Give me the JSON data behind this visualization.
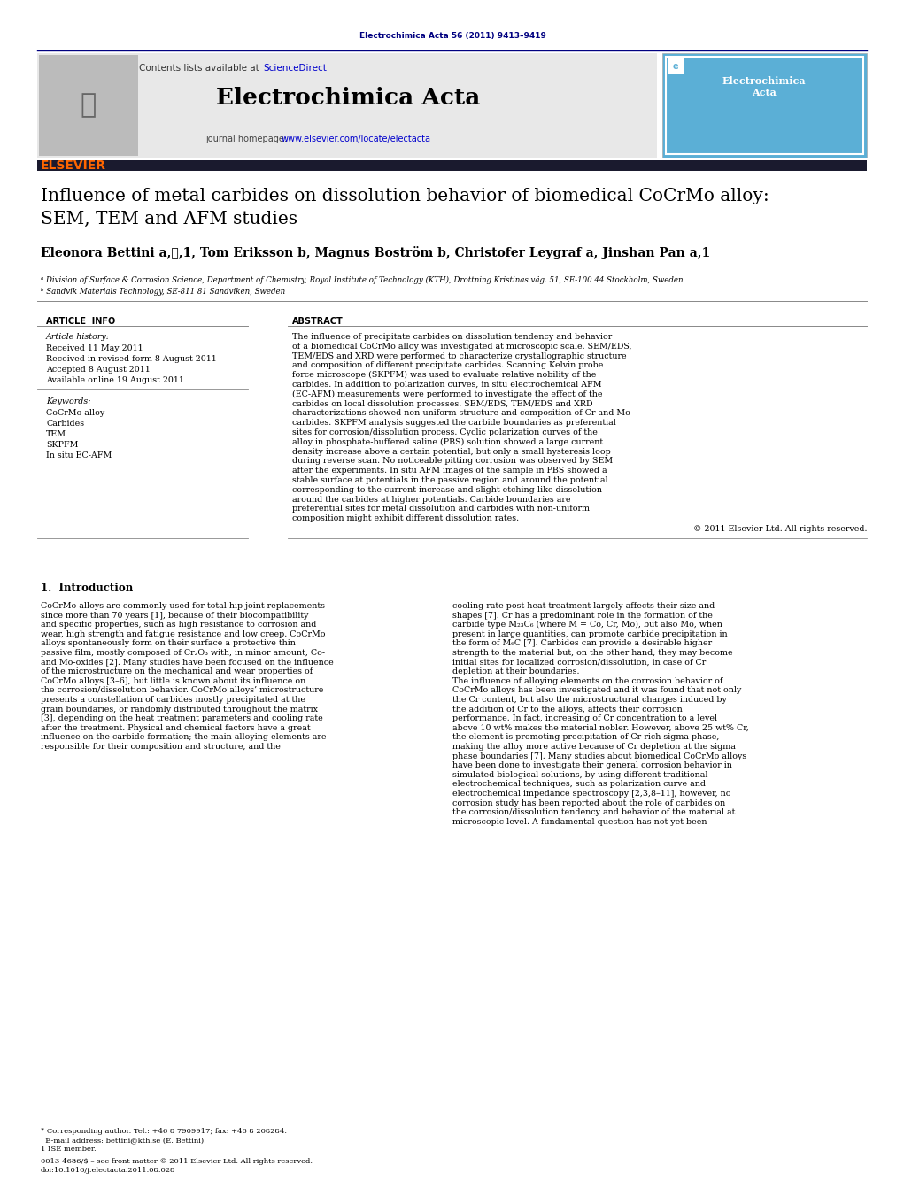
{
  "page_width": 10.21,
  "page_height": 13.51,
  "bg_color": "#ffffff",
  "header_journal_ref": "Electrochimica Acta 56 (2011) 9413–9419",
  "header_ref_color": "#000080",
  "journal_name": "Electrochimica Acta",
  "contents_text": "Contents lists available at ",
  "sciencedirect_text": "ScienceDirect",
  "journal_homepage_text": "journal homepage: ",
  "journal_url": "www.elsevier.com/locate/electacta",
  "header_bg_color": "#e8e8e8",
  "title_line1": "Influence of metal carbides on dissolution behavior of biomedical CoCrMo alloy:",
  "title_line2": "SEM, TEM and AFM studies",
  "authors": "Eleonora Bettini a,⋆,1, Tom Eriksson b, Magnus Boström b, Christofer Leygraf a, Jinshan Pan a,1",
  "affiliation_a": "ᵃ Division of Surface & Corrosion Science, Department of Chemistry, Royal Institute of Technology (KTH), Drottning Kristinas väg. 51, SE-100 44 Stockholm, Sweden",
  "affiliation_b": "ᵇ Sandvik Materials Technology, SE-811 81 Sandviken, Sweden",
  "article_info_header": "ARTICLE  INFO",
  "abstract_header": "ABSTRACT",
  "article_history_label": "Article history:",
  "received": "Received 11 May 2011",
  "received_revised": "Received in revised form 8 August 2011",
  "accepted": "Accepted 8 August 2011",
  "available": "Available online 19 August 2011",
  "keywords_label": "Keywords:",
  "keywords": [
    "CoCrMo alloy",
    "Carbides",
    "TEM",
    "SKPFM",
    "In situ EC-AFM"
  ],
  "abstract_text": "The influence of precipitate carbides on dissolution tendency and behavior of a biomedical CoCrMo alloy was investigated at microscopic scale. SEM/EDS, TEM/EDS and XRD were performed to characterize crystallographic structure and composition of different precipitate carbides. Scanning Kelvin probe force microscope (SKPFM) was used to evaluate relative nobility of the carbides. In addition to polarization curves, in situ electrochemical AFM (EC-AFM) measurements were performed to investigate the effect of the carbides on local dissolution processes. SEM/EDS, TEM/EDS and XRD characterizations showed non-uniform structure and composition of Cr and Mo carbides. SKPFM analysis suggested the carbide boundaries as preferential sites for corrosion/dissolution process. Cyclic polarization curves of the alloy in phosphate-buffered saline (PBS) solution showed a large current density increase above a certain potential, but only a small hysteresis loop during reverse scan. No noticeable pitting corrosion was observed by SEM after the experiments. In situ AFM images of the sample in PBS showed a stable surface at potentials in the passive region and around the potential corresponding to the current increase and slight etching-like dissolution around the carbides at higher potentials. Carbide boundaries are preferential sites for metal dissolution and carbides with non-uniform composition might exhibit different dissolution rates.",
  "copyright": "© 2011 Elsevier Ltd. All rights reserved.",
  "intro_header": "1.  Introduction",
  "intro_col1": "     CoCrMo alloys are commonly used for total hip joint replacements since more than 70 years [1], because of their biocompatibility and specific properties, such as high resistance to corrosion and wear, high strength and fatigue resistance and low creep. CoCrMo alloys spontaneously form on their surface a protective thin passive film, mostly composed of Cr₂O₃ with, in minor amount, Co- and Mo-oxides [2]. Many studies have been focused on the influence of the microstructure on the mechanical and wear properties of CoCrMo alloys [3–6], but little is known about its influence on the corrosion/dissolution behavior. CoCrMo alloys’ microstructure presents a constellation of carbides mostly precipitated at the grain boundaries, or randomly distributed throughout the matrix [3], depending on the heat treatment parameters and cooling rate after the treatment. Physical and chemical factors have a great influence on the carbide formation; the main alloying elements are responsible for their composition and structure, and the",
  "intro_col2": "cooling rate post heat treatment largely affects their size and shapes [7]. Cr has a predominant role in the formation of the carbide type M₂₃C₆ (where M = Co, Cr, Mo), but also Mo, when present in large quantities, can promote carbide precipitation in the form of M₆C [7]. Carbides can provide a desirable higher strength to the material but, on the other hand, they may become initial sites for localized corrosion/dissolution, in case of Cr depletion at their boundaries.\n     The influence of alloying elements on the corrosion behavior of CoCrMo alloys has been investigated and it was found that not only the Cr content, but also the microstructural changes induced by the addition of Cr to the alloys, affects their corrosion performance. In fact, increasing of Cr concentration to a level above 10 wt% makes the material nobler. However, above 25 wt% Cr, the element is promoting precipitation of Cr-rich sigma phase, making the alloy more active because of Cr depletion at the sigma phase boundaries [7]. Many studies about biomedical CoCrMo alloys have been done to investigate their general corrosion behavior in simulated biological solutions, by using different traditional electrochemical techniques, such as polarization curve and electrochemical impedance spectroscopy [2,3,8–11], however, no corrosion study has been reported about the role of carbides on the corrosion/dissolution tendency and behavior of the material at microscopic level. A fundamental question has not yet been",
  "footer_note1": "* Corresponding author. Tel.: +46 8 7909917; fax: +46 8 208284.",
  "footer_note2": "  E-mail address: bettini@kth.se (E. Bettini).",
  "footer_note3": "1 ISE member.",
  "footer_bottom1": "0013-4686/$ – see front matter © 2011 Elsevier Ltd. All rights reserved.",
  "footer_bottom2": "doi:10.1016/j.electacta.2011.08.028",
  "elsevier_orange": "#ff6600",
  "dark_navy": "#1a1a2e",
  "link_blue": "#0000cc"
}
